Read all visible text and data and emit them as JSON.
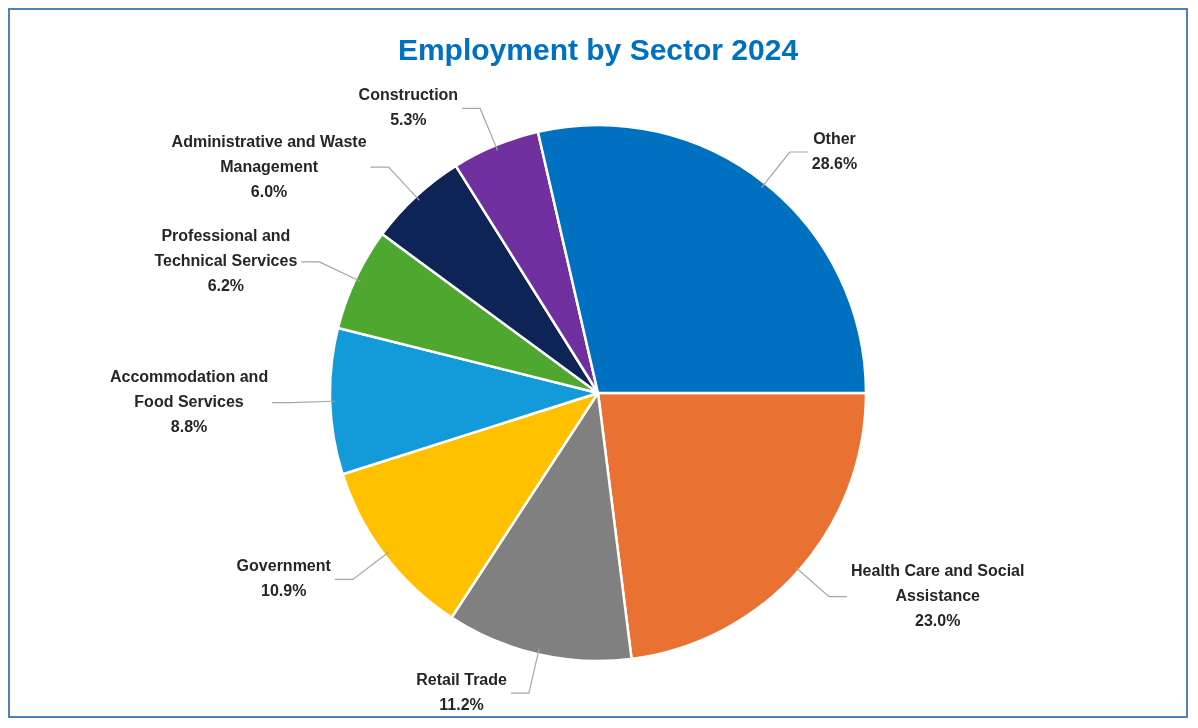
{
  "chart_data": {
    "type": "pie",
    "title": "Employment by Sector 2024",
    "categories": [
      "Health Care and Social Assistance",
      "Retail Trade",
      "Government",
      "Accommodation and Food Services",
      "Professional and Technical Services",
      "Administrative and Waste Management",
      "Construction",
      "Other"
    ],
    "values": [
      23.0,
      11.2,
      10.9,
      8.8,
      6.2,
      6.0,
      5.3,
      28.6
    ],
    "value_labels": [
      "23.0%",
      "11.2%",
      "10.9%",
      "8.8%",
      "6.2%",
      "6.0%",
      "5.3%",
      "28.6%"
    ],
    "colors": [
      "#e97132",
      "#808080",
      "#ffc000",
      "#129bd8",
      "#4ea72e",
      "#0e2356",
      "#7030a0",
      "#0070c0"
    ],
    "legend": false
  }
}
